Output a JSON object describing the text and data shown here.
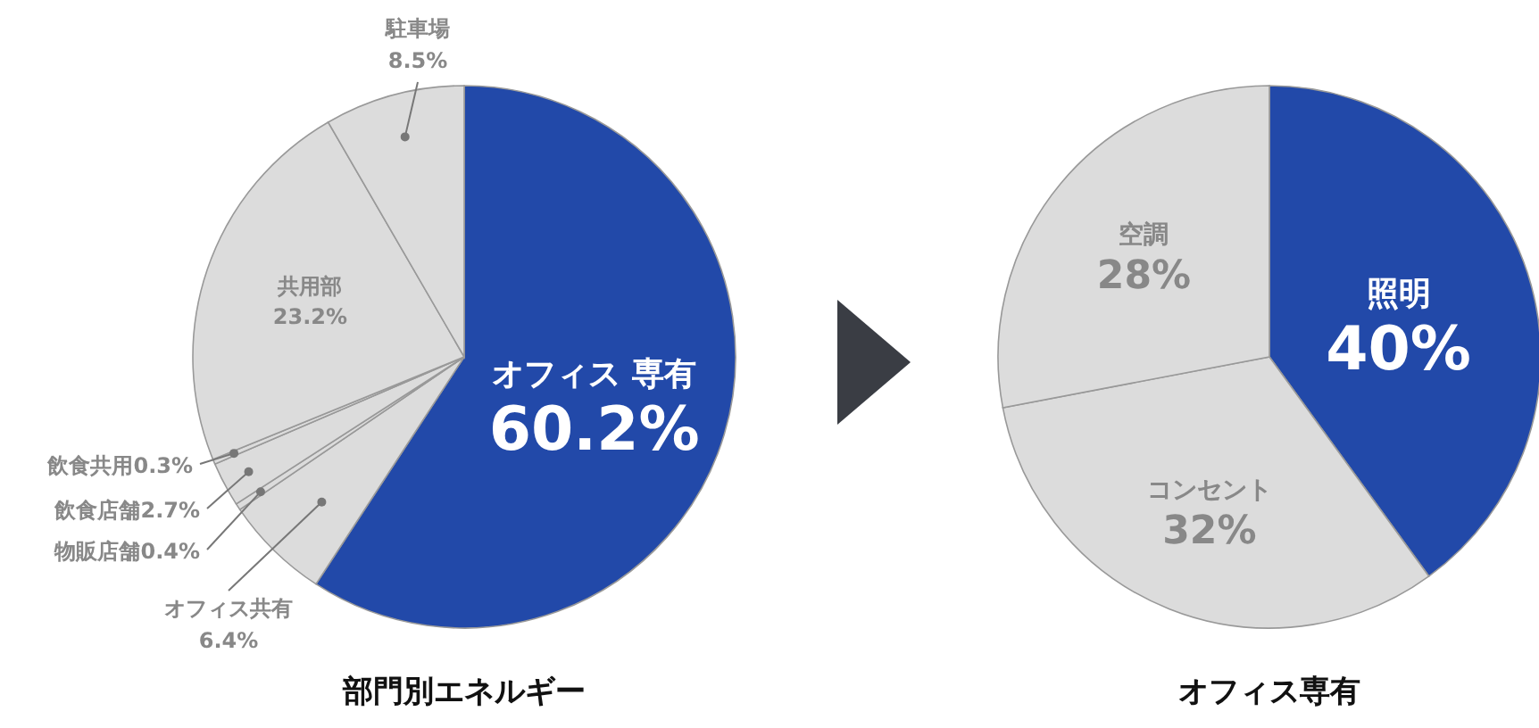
{
  "chart_data": [
    {
      "type": "pie",
      "title": "部門別エネルギー",
      "categories": [
        "オフィス 専有",
        "オフィス共有",
        "物販店舗",
        "飲食店舗",
        "飲食共用",
        "共用部",
        "駐車場"
      ],
      "values": [
        60.2,
        6.4,
        0.4,
        2.7,
        0.3,
        23.2,
        8.5
      ],
      "value_labels": [
        "60.2%",
        "6.4%",
        "0.4%",
        "2.7%",
        "0.3%",
        "23.2%",
        "8.5%"
      ],
      "colors": [
        "#2249a9",
        "#dcdcdc",
        "#dcdcdc",
        "#dcdcdc",
        "#dcdcdc",
        "#dcdcdc",
        "#dcdcdc"
      ]
    },
    {
      "type": "pie",
      "title": "オフィス専有",
      "categories": [
        "照明",
        "コンセント",
        "空調"
      ],
      "values": [
        40,
        32,
        28
      ],
      "value_labels": [
        "40%",
        "32%",
        "28%"
      ],
      "colors": [
        "#2249a9",
        "#dcdcdc",
        "#dcdcdc"
      ]
    }
  ]
}
